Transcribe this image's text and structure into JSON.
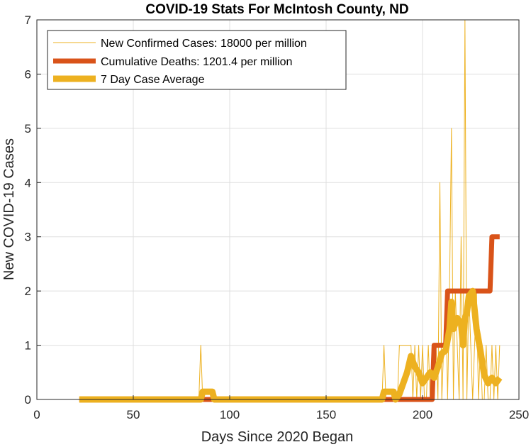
{
  "chart_data": {
    "type": "line",
    "title": "COVID-19 Stats For McIntosh County, ND",
    "xlabel": "Days Since 2020 Began",
    "ylabel": "New COVID-19 Cases",
    "xlim": [
      0,
      250
    ],
    "ylim": [
      0,
      7
    ],
    "xticks": [
      "0",
      "50",
      "100",
      "150",
      "200",
      "250"
    ],
    "yticks": [
      "0",
      "1",
      "2",
      "3",
      "4",
      "5",
      "6",
      "7"
    ],
    "grid": true,
    "legend_position": "top-left",
    "colors": {
      "new_cases": "#EDB120",
      "deaths": "#D95319",
      "avg": "#EDB120"
    },
    "series": [
      {
        "name": "New Confirmed Cases: 18000 per million",
        "x": [
          22,
          84,
          85,
          86,
          179,
          180,
          181,
          187,
          188,
          189,
          194,
          195,
          196,
          197,
          198,
          199,
          200,
          201,
          202,
          203,
          204,
          205,
          206,
          207,
          208,
          209,
          210,
          211,
          212,
          213,
          214,
          215,
          216,
          217,
          218,
          219,
          220,
          221,
          222,
          223,
          224,
          225,
          226,
          227,
          228,
          229,
          230,
          231,
          232,
          233,
          234,
          235,
          236,
          237,
          238,
          239,
          240
        ],
        "y": [
          0,
          0,
          1,
          0,
          0,
          1,
          0,
          0,
          1,
          1,
          1,
          0,
          1,
          0,
          1,
          0,
          1,
          0,
          0,
          1,
          0,
          1,
          0,
          1,
          0,
          4,
          0,
          1,
          2,
          0,
          2,
          5,
          0,
          2,
          1,
          0,
          3,
          0,
          7,
          0,
          2,
          1,
          0,
          1,
          2,
          0,
          1,
          0,
          0,
          1,
          0,
          0,
          1,
          0,
          1,
          0,
          1
        ]
      },
      {
        "name": "Cumulative Deaths: 1201.4 per million",
        "x": [
          22,
          205,
          206,
          212,
          213,
          218,
          219,
          235,
          236,
          240
        ],
        "y": [
          0,
          0,
          1,
          1,
          2,
          2,
          2,
          2,
          3,
          3
        ]
      },
      {
        "name": "7 Day Case Average",
        "x": [
          22,
          85,
          86,
          91,
          92,
          179,
          180,
          185,
          186,
          188,
          190,
          192,
          194,
          196,
          198,
          200,
          202,
          204,
          206,
          208,
          210,
          212,
          214,
          215,
          216,
          218,
          220,
          221,
          222,
          223,
          224,
          226,
          228,
          230,
          232,
          234,
          236,
          238,
          240
        ],
        "y": [
          0,
          0,
          0.143,
          0.143,
          0,
          0,
          0.143,
          0.143,
          0,
          0.1,
          0.3,
          0.5,
          0.8,
          0.6,
          0.5,
          0.3,
          0.4,
          0.5,
          0.4,
          0.6,
          0.85,
          0.9,
          1.3,
          1.8,
          1.3,
          1.5,
          1.4,
          1.0,
          1.5,
          1.6,
          1.9,
          2.0,
          1.3,
          0.9,
          0.45,
          0.3,
          0.4,
          0.3,
          0.4
        ]
      }
    ]
  }
}
